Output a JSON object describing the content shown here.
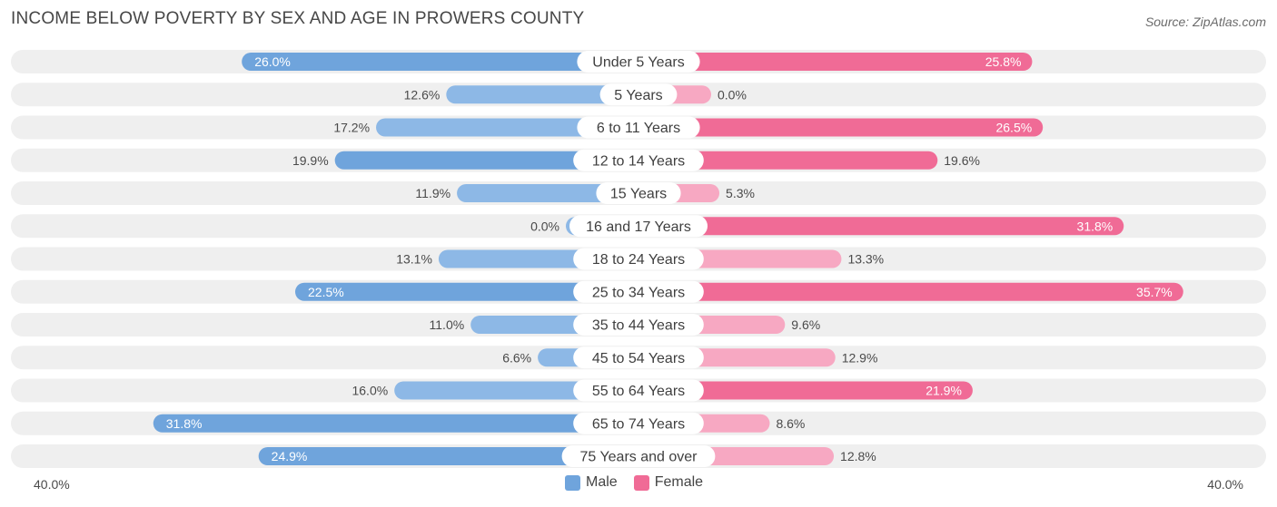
{
  "title": "INCOME BELOW POVERTY BY SEX AND AGE IN PROWERS COUNTY",
  "source": "Source: ZipAtlas.com",
  "colors": {
    "male": "#6fa4dc",
    "male_light": "#aecbee",
    "female": "#f06b96",
    "female_light": "#f7a8c2",
    "row_bg": "#efefef",
    "label_bg": "#ffffff"
  },
  "legend": {
    "male": "Male",
    "female": "Female"
  },
  "axis": {
    "left_label": "40.0%",
    "right_label": "40.0%"
  },
  "chart_data": {
    "type": "bar",
    "orientation": "horizontal-diverging",
    "title": "INCOME BELOW POVERTY BY SEX AND AGE IN PROWERS COUNTY",
    "xlim": [
      0,
      40
    ],
    "categories": [
      "Under 5 Years",
      "5 Years",
      "6 to 11 Years",
      "12 to 14 Years",
      "15 Years",
      "16 and 17 Years",
      "18 to 24 Years",
      "25 to 34 Years",
      "35 to 44 Years",
      "45 to 54 Years",
      "55 to 64 Years",
      "65 to 74 Years",
      "75 Years and over"
    ],
    "series": [
      {
        "name": "Male",
        "values": [
          26.0,
          12.6,
          17.2,
          19.9,
          11.9,
          0.0,
          13.1,
          22.5,
          11.0,
          6.6,
          16.0,
          31.8,
          24.9
        ],
        "labels": [
          "26.0%",
          "12.6%",
          "17.2%",
          "19.9%",
          "11.9%",
          "0.0%",
          "13.1%",
          "22.5%",
          "11.0%",
          "6.6%",
          "16.0%",
          "31.8%",
          "24.9%"
        ]
      },
      {
        "name": "Female",
        "values": [
          25.8,
          0.0,
          26.5,
          19.6,
          5.3,
          31.8,
          13.3,
          35.7,
          9.6,
          12.9,
          21.9,
          8.6,
          12.8
        ],
        "labels": [
          "25.8%",
          "0.0%",
          "26.5%",
          "19.6%",
          "5.3%",
          "31.8%",
          "13.3%",
          "35.7%",
          "9.6%",
          "12.9%",
          "21.9%",
          "8.6%",
          "12.8%"
        ]
      }
    ]
  }
}
